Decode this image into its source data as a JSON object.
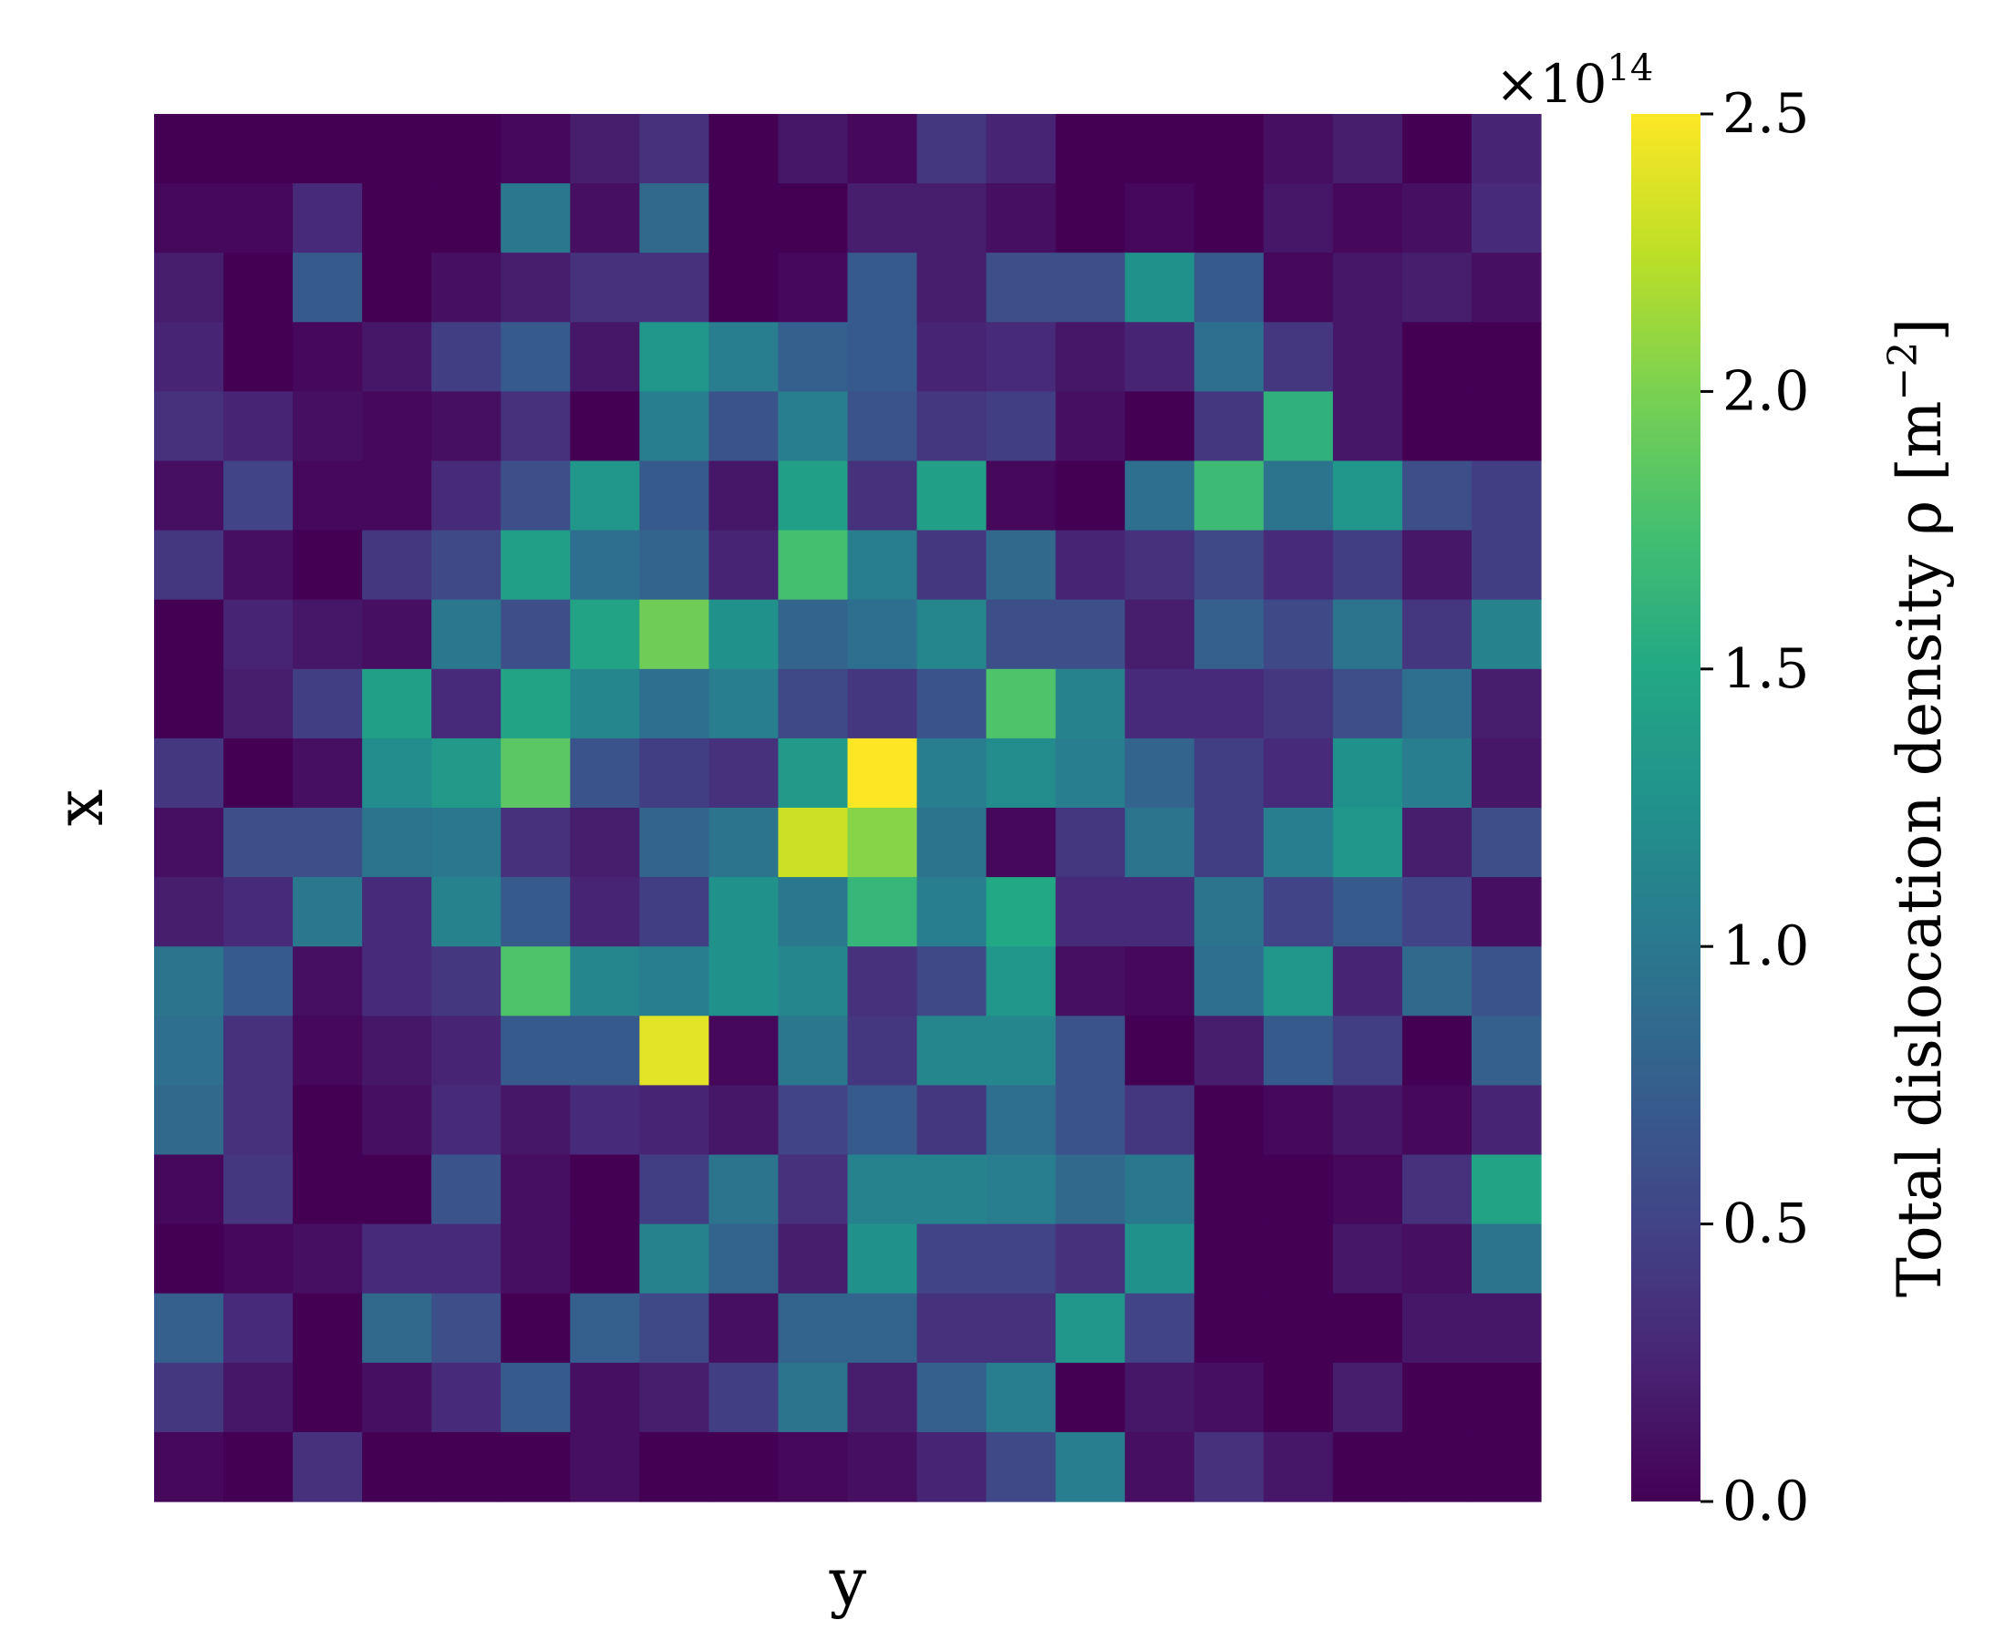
{
  "chart_data": {
    "type": "heatmap",
    "title": "",
    "xlabel": "y",
    "ylabel": "x",
    "colorbar": {
      "label": "Total dislocation density ρ [m⁻²]",
      "label_main": "Total dislocation density ρ [m",
      "label_sup": "−2",
      "label_close": "]",
      "multiplier": "×10",
      "multiplier_exp": "14",
      "range": [
        0.0,
        2.5
      ],
      "ticks": [
        0.0,
        0.5,
        1.0,
        1.5,
        2.0,
        2.5
      ],
      "tick_labels": [
        "0.0",
        "0.5",
        "1.0",
        "1.5",
        "2.0",
        "2.5"
      ],
      "colormap": "viridis"
    },
    "rows": 20,
    "cols": 20,
    "values": [
      [
        0.0,
        0.0,
        0.0,
        0.0,
        0.0,
        0.05,
        0.2,
        0.35,
        0.0,
        0.15,
        0.05,
        0.4,
        0.25,
        0.0,
        0.0,
        0.0,
        0.1,
        0.2,
        0.0,
        0.25
      ],
      [
        0.05,
        0.05,
        0.3,
        0.0,
        0.0,
        1.0,
        0.1,
        0.85,
        0.0,
        0.0,
        0.2,
        0.2,
        0.1,
        0.0,
        0.05,
        0.0,
        0.15,
        0.05,
        0.1,
        0.3
      ],
      [
        0.2,
        0.0,
        0.7,
        0.0,
        0.1,
        0.2,
        0.35,
        0.35,
        0.0,
        0.05,
        0.7,
        0.2,
        0.6,
        0.6,
        1.25,
        0.7,
        0.05,
        0.15,
        0.2,
        0.1
      ],
      [
        0.25,
        0.0,
        0.05,
        0.15,
        0.45,
        0.7,
        0.15,
        1.3,
        1.05,
        0.75,
        0.7,
        0.25,
        0.3,
        0.15,
        0.25,
        0.9,
        0.4,
        0.15,
        0.0,
        0.0
      ],
      [
        0.35,
        0.25,
        0.1,
        0.05,
        0.1,
        0.35,
        0.0,
        1.05,
        0.65,
        1.05,
        0.65,
        0.4,
        0.45,
        0.1,
        0.0,
        0.4,
        1.6,
        0.15,
        0.0,
        0.0
      ],
      [
        0.1,
        0.5,
        0.05,
        0.05,
        0.3,
        0.6,
        1.3,
        0.7,
        0.15,
        1.4,
        0.35,
        1.4,
        0.05,
        0.0,
        0.9,
        1.7,
        0.95,
        1.3,
        0.6,
        0.45
      ],
      [
        0.4,
        0.1,
        0.0,
        0.4,
        0.55,
        1.4,
        0.9,
        0.8,
        0.25,
        1.75,
        1.05,
        0.4,
        0.85,
        0.25,
        0.35,
        0.55,
        0.3,
        0.45,
        0.15,
        0.45
      ],
      [
        0.0,
        0.25,
        0.15,
        0.1,
        1.0,
        0.6,
        1.45,
        1.95,
        1.25,
        0.8,
        0.9,
        1.15,
        0.6,
        0.6,
        0.2,
        0.75,
        0.55,
        0.95,
        0.4,
        1.1
      ],
      [
        0.0,
        0.2,
        0.45,
        1.4,
        0.3,
        1.45,
        1.15,
        0.9,
        1.05,
        0.55,
        0.4,
        0.65,
        1.8,
        1.1,
        0.3,
        0.3,
        0.4,
        0.6,
        0.9,
        0.2
      ],
      [
        0.4,
        0.0,
        0.1,
        1.2,
        1.35,
        1.85,
        0.65,
        0.45,
        0.35,
        1.35,
        2.5,
        1.05,
        1.2,
        1.05,
        0.8,
        0.45,
        0.3,
        1.25,
        1.05,
        0.15
      ],
      [
        0.1,
        0.6,
        0.6,
        0.95,
        1.0,
        0.35,
        0.2,
        0.8,
        0.95,
        2.3,
        2.05,
        0.95,
        0.05,
        0.4,
        0.95,
        0.45,
        1.05,
        1.3,
        0.2,
        0.6
      ],
      [
        0.2,
        0.3,
        1.0,
        0.3,
        1.1,
        0.7,
        0.25,
        0.45,
        1.25,
        1.0,
        1.65,
        1.05,
        1.5,
        0.3,
        0.3,
        0.95,
        0.5,
        0.7,
        0.5,
        0.1
      ],
      [
        0.95,
        0.7,
        0.1,
        0.3,
        0.4,
        1.8,
        1.15,
        1.05,
        1.25,
        1.15,
        0.35,
        0.55,
        1.3,
        0.1,
        0.05,
        0.9,
        1.3,
        0.25,
        0.85,
        0.65
      ],
      [
        0.9,
        0.35,
        0.05,
        0.15,
        0.25,
        0.7,
        0.7,
        2.4,
        0.05,
        1.0,
        0.4,
        1.15,
        1.15,
        0.65,
        0.0,
        0.2,
        0.7,
        0.45,
        0.0,
        0.75
      ],
      [
        0.85,
        0.35,
        0.0,
        0.1,
        0.3,
        0.15,
        0.3,
        0.25,
        0.15,
        0.5,
        0.7,
        0.4,
        0.9,
        0.65,
        0.4,
        0.0,
        0.05,
        0.15,
        0.05,
        0.25
      ],
      [
        0.05,
        0.4,
        0.0,
        0.0,
        0.65,
        0.1,
        0.0,
        0.45,
        0.95,
        0.35,
        1.1,
        1.1,
        1.05,
        0.85,
        1.0,
        0.0,
        0.0,
        0.05,
        0.35,
        1.45
      ],
      [
        0.0,
        0.05,
        0.1,
        0.3,
        0.3,
        0.1,
        0.0,
        1.1,
        0.8,
        0.2,
        1.25,
        0.5,
        0.5,
        0.35,
        1.25,
        0.0,
        0.0,
        0.15,
        0.1,
        0.95
      ],
      [
        0.75,
        0.3,
        0.0,
        0.85,
        0.6,
        0.0,
        0.75,
        0.55,
        0.1,
        0.8,
        0.8,
        0.35,
        0.35,
        1.3,
        0.5,
        0.0,
        0.0,
        0.0,
        0.15,
        0.15
      ],
      [
        0.4,
        0.15,
        0.0,
        0.1,
        0.3,
        0.7,
        0.1,
        0.2,
        0.45,
        0.95,
        0.2,
        0.75,
        1.05,
        0.0,
        0.15,
        0.1,
        0.0,
        0.2,
        0.0,
        0.0
      ],
      [
        0.05,
        0.0,
        0.35,
        0.0,
        0.0,
        0.0,
        0.1,
        0.0,
        0.0,
        0.05,
        0.1,
        0.25,
        0.55,
        1.05,
        0.1,
        0.35,
        0.15,
        0.0,
        0.0,
        0.0
      ]
    ]
  }
}
